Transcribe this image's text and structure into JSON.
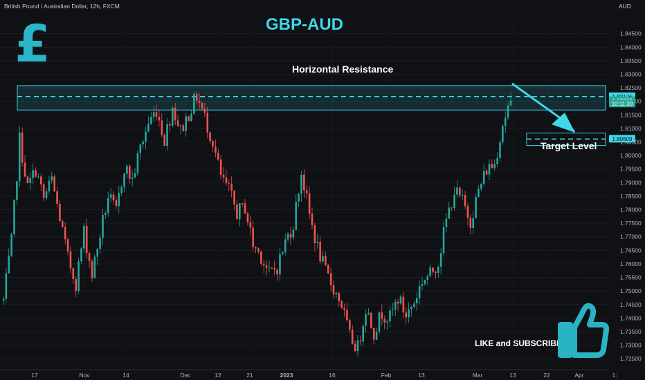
{
  "header": {
    "symbol_line": "British Pound / Australian Dollar, 12h, FXCM",
    "currency": "AUD"
  },
  "title": "GBP-AUD",
  "annotations": {
    "resistance_label": "Horizontal Resistance",
    "target_label": "Target Level",
    "cta_label": "LIKE and SUBSCRIBE"
  },
  "icons": {
    "logo": "pound-sign-icon",
    "cta": "thumbs-up-icon",
    "arrow": "down-arrow-icon"
  },
  "colors": {
    "accent": "#3ed8e8",
    "up": "#26a69a",
    "down": "#ef5350",
    "background": "#0f1114"
  },
  "chart_data": {
    "type": "candlestick",
    "ylim": [
      1.7225,
      1.8495
    ],
    "y_ticks": [
      "1.84500",
      "1.84000",
      "1.83500",
      "1.83000",
      "1.82500",
      "1.82000",
      "1.81500",
      "1.81000",
      "1.80500",
      "1.80000",
      "1.79500",
      "1.79000",
      "1.78500",
      "1.78000",
      "1.77500",
      "1.77000",
      "1.76500",
      "1.76000",
      "1.75500",
      "1.75000",
      "1.74500",
      "1.74000",
      "1.73500",
      "1.73000",
      "1.72500"
    ],
    "x_ticks": [
      "17",
      "Nov",
      "14",
      "Dec",
      "12",
      "21",
      "2023",
      "16",
      "Feb",
      "13",
      "Mar",
      "13",
      "22",
      "Apr",
      "1:"
    ],
    "price_labels": [
      {
        "text": "1.82176",
        "value": 1.82176,
        "color": "#3ed8e8"
      },
      {
        "text": "1.82028",
        "value": 1.82028,
        "color": "#26a69a"
      },
      {
        "text": "10:11:39",
        "value": 1.8191,
        "color": "#26a69a"
      },
      {
        "text": "1.80609",
        "value": 1.80609,
        "color": "#3ed8e8"
      }
    ],
    "resistance_zone": [
      1.8168,
      1.8258
    ],
    "resistance_level": 1.82176,
    "target_zone": [
      1.8037,
      1.8083
    ],
    "target_level": 1.80609,
    "close_path": [
      1.7465,
      1.768,
      1.806,
      1.788,
      1.795,
      1.784,
      1.791,
      1.777,
      1.762,
      1.753,
      1.772,
      1.756,
      1.771,
      1.785,
      1.779,
      1.796,
      1.791,
      1.803,
      1.812,
      1.817,
      1.806,
      1.818,
      1.809,
      1.8155,
      1.822,
      1.814,
      1.805,
      1.792,
      1.787,
      1.779,
      1.781,
      1.767,
      1.763,
      1.756,
      1.759,
      1.768,
      1.775,
      1.794,
      1.778,
      1.766,
      1.757,
      1.751,
      1.745,
      1.733,
      1.729,
      1.744,
      1.735,
      1.742,
      1.74,
      1.7475,
      1.741,
      1.746,
      1.754,
      1.756,
      1.761,
      1.776,
      1.787,
      1.783,
      1.776,
      1.787,
      1.795,
      1.797,
      1.812,
      1.8203
    ]
  }
}
